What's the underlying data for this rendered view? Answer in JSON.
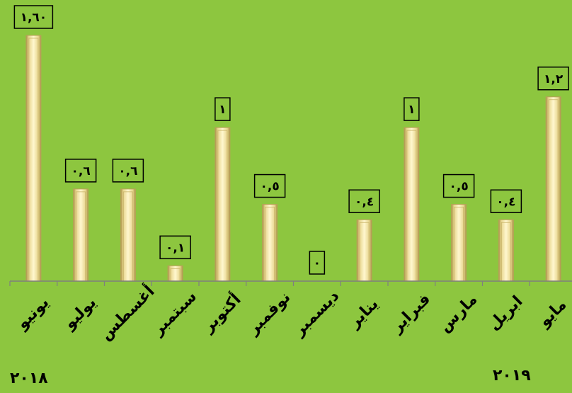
{
  "chart_data": {
    "type": "bar",
    "categories": [
      "يونيو",
      "يوليو",
      "أغسطس",
      "سبتمبر",
      "أكتوبر",
      "نوفمبر",
      "ديسمبر",
      "يناير",
      "فبراير",
      "مارس",
      "ابريل",
      "مايو"
    ],
    "values": [
      1.6,
      0.6,
      0.6,
      0.1,
      1,
      0.5,
      0,
      0.4,
      1,
      0.5,
      0.4,
      1.2
    ],
    "data_labels": [
      "١,٦٠",
      "٠,٦",
      "٠,٦",
      "٠,١",
      "١",
      "٠,٥",
      "٠",
      "٠,٤",
      "١",
      "٠,٥",
      "٠,٤",
      "١,٢"
    ],
    "ylim": [
      0,
      1.6
    ],
    "grid": false,
    "legend": "none",
    "year_labels": {
      "first": "٢٠١٨",
      "second": "٢٠١٩"
    },
    "colors": {
      "background": "#8dc63f",
      "bar_fill": "#f2e6a8",
      "bar_edge": "#b8a158",
      "axis": "#7f7f7f",
      "label_box_border": "#000000"
    }
  }
}
